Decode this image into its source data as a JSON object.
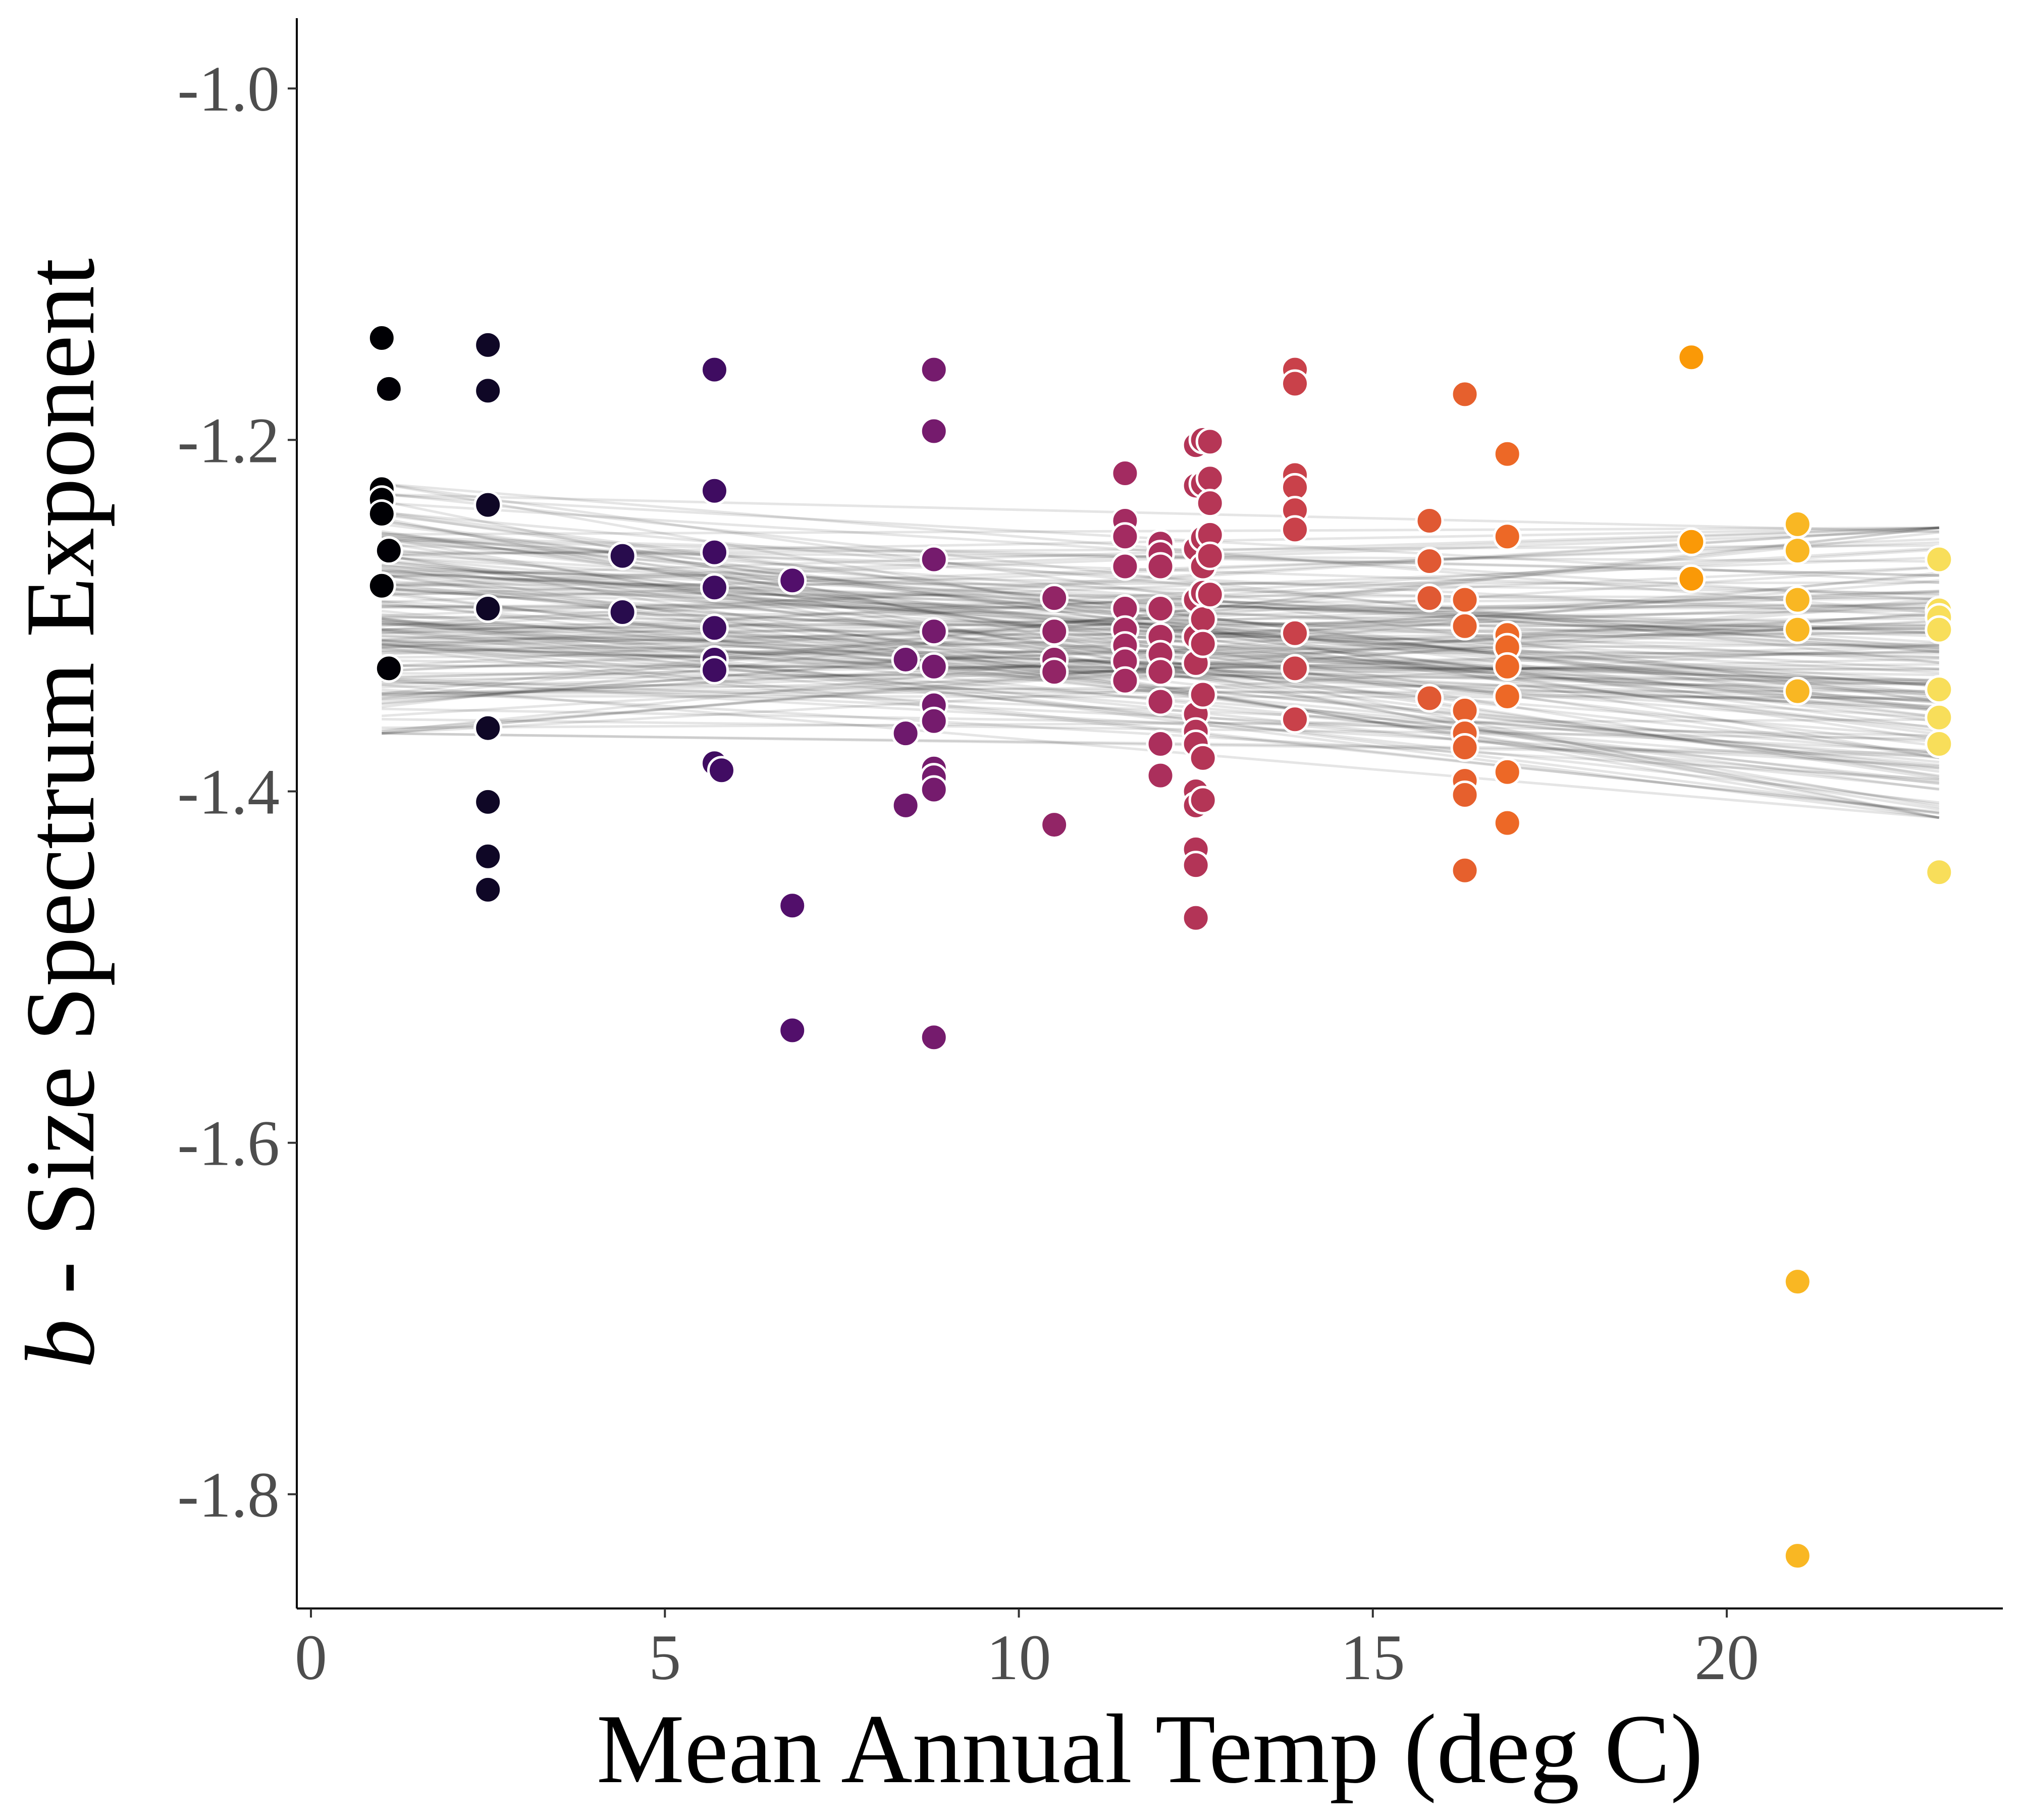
{
  "chart_data": {
    "type": "scatter",
    "xlabel": "Mean Annual Temp (deg C)",
    "ylabel_prefix": "b",
    "ylabel_rest": " - Size Spectrum Exponent",
    "xlim": [
      -0.2,
      23.9
    ],
    "ylim": [
      -1.865,
      -0.96
    ],
    "x_ticks": [
      0,
      5,
      10,
      15,
      20
    ],
    "x_tick_labels": [
      "0",
      "5",
      "10",
      "15",
      "20"
    ],
    "y_ticks": [
      -1.8,
      -1.6,
      -1.4,
      -1.2,
      -1.0
    ],
    "y_tick_labels": [
      "-1.8",
      "-1.6",
      "-1.4",
      "-1.2",
      "-1.0"
    ],
    "grid": false,
    "colormap": "inferno",
    "color_stops": [
      "#000004",
      "#1b0c41",
      "#4a0c6b",
      "#781c6d",
      "#a52c60",
      "#cf4446",
      "#ed6925",
      "#fb9b06",
      "#f7d13d",
      "#fcffa4"
    ],
    "color_range": [
      1.0,
      23.0
    ],
    "points": [
      {
        "x": 1.0,
        "y": -1.142
      },
      {
        "x": 1.1,
        "y": -1.171
      },
      {
        "x": 1.0,
        "y": -1.228
      },
      {
        "x": 1.0,
        "y": -1.234
      },
      {
        "x": 1.0,
        "y": -1.242
      },
      {
        "x": 1.1,
        "y": -1.263
      },
      {
        "x": 1.0,
        "y": -1.283
      },
      {
        "x": 1.1,
        "y": -1.33
      },
      {
        "x": 2.5,
        "y": -1.146
      },
      {
        "x": 2.5,
        "y": -1.172
      },
      {
        "x": 2.5,
        "y": -1.237
      },
      {
        "x": 2.5,
        "y": -1.296
      },
      {
        "x": 2.5,
        "y": -1.364
      },
      {
        "x": 2.5,
        "y": -1.406
      },
      {
        "x": 2.5,
        "y": -1.437
      },
      {
        "x": 2.5,
        "y": -1.456
      },
      {
        "x": 4.4,
        "y": -1.266
      },
      {
        "x": 4.4,
        "y": -1.298
      },
      {
        "x": 5.7,
        "y": -1.16
      },
      {
        "x": 5.7,
        "y": -1.229
      },
      {
        "x": 5.7,
        "y": -1.264
      },
      {
        "x": 5.7,
        "y": -1.284
      },
      {
        "x": 5.7,
        "y": -1.307
      },
      {
        "x": 5.7,
        "y": -1.325
      },
      {
        "x": 5.7,
        "y": -1.331
      },
      {
        "x": 5.7,
        "y": -1.384
      },
      {
        "x": 5.8,
        "y": -1.388
      },
      {
        "x": 6.8,
        "y": -1.28
      },
      {
        "x": 6.8,
        "y": -1.465
      },
      {
        "x": 6.8,
        "y": -1.536
      },
      {
        "x": 8.4,
        "y": -1.325
      },
      {
        "x": 8.4,
        "y": -1.367
      },
      {
        "x": 8.4,
        "y": -1.408
      },
      {
        "x": 8.8,
        "y": -1.16
      },
      {
        "x": 8.8,
        "y": -1.195
      },
      {
        "x": 8.8,
        "y": -1.268
      },
      {
        "x": 8.8,
        "y": -1.309
      },
      {
        "x": 8.8,
        "y": -1.329
      },
      {
        "x": 8.8,
        "y": -1.351
      },
      {
        "x": 8.8,
        "y": -1.36
      },
      {
        "x": 8.8,
        "y": -1.387
      },
      {
        "x": 8.8,
        "y": -1.392
      },
      {
        "x": 8.8,
        "y": -1.399
      },
      {
        "x": 8.8,
        "y": -1.54
      },
      {
        "x": 10.5,
        "y": -1.29
      },
      {
        "x": 10.5,
        "y": -1.309
      },
      {
        "x": 10.5,
        "y": -1.325
      },
      {
        "x": 10.5,
        "y": -1.332
      },
      {
        "x": 10.5,
        "y": -1.419
      },
      {
        "x": 11.5,
        "y": -1.219
      },
      {
        "x": 11.5,
        "y": -1.246
      },
      {
        "x": 11.5,
        "y": -1.255
      },
      {
        "x": 11.5,
        "y": -1.272
      },
      {
        "x": 11.5,
        "y": -1.296
      },
      {
        "x": 11.5,
        "y": -1.308
      },
      {
        "x": 11.5,
        "y": -1.317
      },
      {
        "x": 11.5,
        "y": -1.326
      },
      {
        "x": 11.5,
        "y": -1.337
      },
      {
        "x": 12.0,
        "y": -1.259
      },
      {
        "x": 12.0,
        "y": -1.265
      },
      {
        "x": 12.0,
        "y": -1.272
      },
      {
        "x": 12.0,
        "y": -1.296
      },
      {
        "x": 12.0,
        "y": -1.312
      },
      {
        "x": 12.0,
        "y": -1.322
      },
      {
        "x": 12.0,
        "y": -1.332
      },
      {
        "x": 12.0,
        "y": -1.349
      },
      {
        "x": 12.0,
        "y": -1.373
      },
      {
        "x": 12.0,
        "y": -1.391
      },
      {
        "x": 12.5,
        "y": -1.203
      },
      {
        "x": 12.5,
        "y": -1.226
      },
      {
        "x": 12.5,
        "y": -1.262
      },
      {
        "x": 12.5,
        "y": -1.291
      },
      {
        "x": 12.5,
        "y": -1.312
      },
      {
        "x": 12.5,
        "y": -1.327
      },
      {
        "x": 12.5,
        "y": -1.356
      },
      {
        "x": 12.5,
        "y": -1.366
      },
      {
        "x": 12.5,
        "y": -1.373
      },
      {
        "x": 12.5,
        "y": -1.4
      },
      {
        "x": 12.5,
        "y": -1.408
      },
      {
        "x": 12.5,
        "y": -1.433
      },
      {
        "x": 12.5,
        "y": -1.442
      },
      {
        "x": 12.5,
        "y": -1.472
      },
      {
        "x": 12.6,
        "y": -1.2
      },
      {
        "x": 12.6,
        "y": -1.225
      },
      {
        "x": 12.6,
        "y": -1.256
      },
      {
        "x": 12.6,
        "y": -1.272
      },
      {
        "x": 12.6,
        "y": -1.287
      },
      {
        "x": 12.6,
        "y": -1.302
      },
      {
        "x": 12.6,
        "y": -1.316
      },
      {
        "x": 12.6,
        "y": -1.345
      },
      {
        "x": 12.6,
        "y": -1.381
      },
      {
        "x": 12.6,
        "y": -1.405
      },
      {
        "x": 12.7,
        "y": -1.201
      },
      {
        "x": 12.7,
        "y": -1.222
      },
      {
        "x": 12.7,
        "y": -1.236
      },
      {
        "x": 12.7,
        "y": -1.254
      },
      {
        "x": 12.7,
        "y": -1.266
      },
      {
        "x": 12.7,
        "y": -1.288
      },
      {
        "x": 13.9,
        "y": -1.16
      },
      {
        "x": 13.9,
        "y": -1.168
      },
      {
        "x": 13.9,
        "y": -1.22
      },
      {
        "x": 13.9,
        "y": -1.227
      },
      {
        "x": 13.9,
        "y": -1.24
      },
      {
        "x": 13.9,
        "y": -1.251
      },
      {
        "x": 13.9,
        "y": -1.31
      },
      {
        "x": 13.9,
        "y": -1.33
      },
      {
        "x": 13.9,
        "y": -1.359
      },
      {
        "x": 15.8,
        "y": -1.246
      },
      {
        "x": 15.8,
        "y": -1.269
      },
      {
        "x": 15.8,
        "y": -1.29
      },
      {
        "x": 15.8,
        "y": -1.347
      },
      {
        "x": 16.3,
        "y": -1.174
      },
      {
        "x": 16.3,
        "y": -1.291
      },
      {
        "x": 16.3,
        "y": -1.306
      },
      {
        "x": 16.3,
        "y": -1.354
      },
      {
        "x": 16.3,
        "y": -1.367
      },
      {
        "x": 16.3,
        "y": -1.375
      },
      {
        "x": 16.3,
        "y": -1.394
      },
      {
        "x": 16.3,
        "y": -1.402
      },
      {
        "x": 16.3,
        "y": -1.445
      },
      {
        "x": 16.9,
        "y": -1.208
      },
      {
        "x": 16.9,
        "y": -1.255
      },
      {
        "x": 16.9,
        "y": -1.311
      },
      {
        "x": 16.9,
        "y": -1.318
      },
      {
        "x": 16.9,
        "y": -1.329
      },
      {
        "x": 16.9,
        "y": -1.346
      },
      {
        "x": 16.9,
        "y": -1.389
      },
      {
        "x": 16.9,
        "y": -1.418
      },
      {
        "x": 19.5,
        "y": -1.153
      },
      {
        "x": 19.5,
        "y": -1.258
      },
      {
        "x": 19.5,
        "y": -1.279
      },
      {
        "x": 21.0,
        "y": -1.248
      },
      {
        "x": 21.0,
        "y": -1.263
      },
      {
        "x": 21.0,
        "y": -1.291
      },
      {
        "x": 21.0,
        "y": -1.308
      },
      {
        "x": 21.0,
        "y": -1.343
      },
      {
        "x": 21.0,
        "y": -1.679
      },
      {
        "x": 21.0,
        "y": -1.835
      },
      {
        "x": 23.0,
        "y": -1.268
      },
      {
        "x": 23.0,
        "y": -1.297
      },
      {
        "x": 23.0,
        "y": -1.301
      },
      {
        "x": 23.0,
        "y": -1.308
      },
      {
        "x": 23.0,
        "y": -1.342
      },
      {
        "x": 23.0,
        "y": -1.358
      },
      {
        "x": 23.0,
        "y": -1.373
      },
      {
        "x": 23.0,
        "y": -1.446
      }
    ],
    "trend_lines": {
      "count": 170,
      "x_range": [
        1.0,
        23.0
      ],
      "y_at_x_start_range": [
        -1.367,
        -1.225
      ],
      "y_at_x_end_range": [
        -1.415,
        -1.25
      ],
      "color": "#000000",
      "opacity": 0.1
    }
  }
}
